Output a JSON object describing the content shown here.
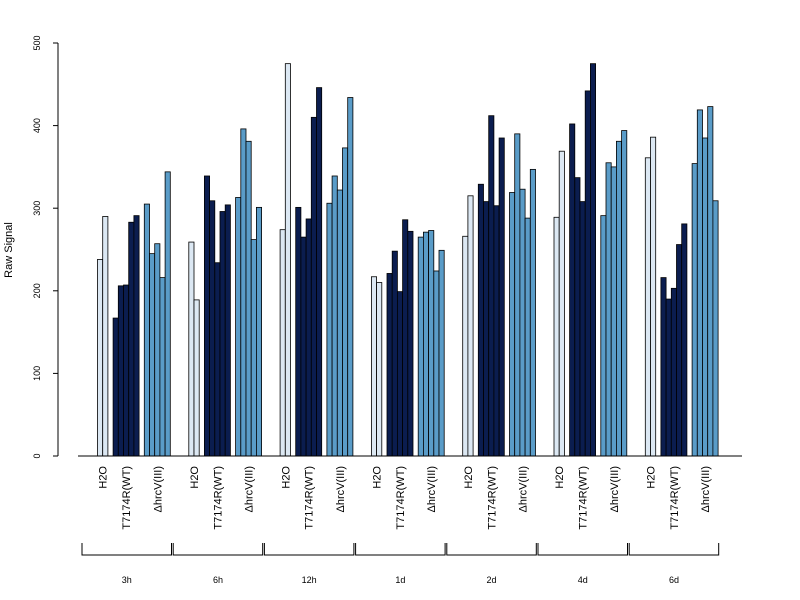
{
  "chart_data": {
    "type": "bar",
    "ylabel": "Raw Signal",
    "xlabel": "",
    "ylim": [
      0,
      500
    ],
    "yticks": [
      0,
      100,
      200,
      300,
      400,
      500
    ],
    "grid": false,
    "legend": "none",
    "colors": {
      "H2O": "#dce8f3",
      "T7174R(WT)": "#0b1d4f",
      "ΔhrcV(III)": "#5a9cc8"
    },
    "treatments": [
      "H2O",
      "T7174R(WT)",
      "ΔhrcV(III)"
    ],
    "time_points": [
      {
        "label": "3h",
        "values": {
          "H2O": [
            238,
            290
          ],
          "T7174R(WT)": [
            167,
            206,
            207,
            283,
            291
          ],
          "ΔhrcV(III)": [
            305,
            245,
            257,
            216,
            344
          ]
        }
      },
      {
        "label": "6h",
        "values": {
          "H2O": [
            259,
            189
          ],
          "T7174R(WT)": [
            339,
            309,
            234,
            296,
            304
          ],
          "ΔhrcV(III)": [
            313,
            396,
            381,
            262,
            301
          ]
        }
      },
      {
        "label": "12h",
        "values": {
          "H2O": [
            274,
            475
          ],
          "T7174R(WT)": [
            301,
            265,
            287,
            410,
            446
          ],
          "ΔhrcV(III)": [
            306,
            339,
            322,
            373,
            434
          ]
        }
      },
      {
        "label": "1d",
        "values": {
          "H2O": [
            217,
            210
          ],
          "T7174R(WT)": [
            221,
            248,
            199,
            286,
            272
          ],
          "ΔhrcV(III)": [
            265,
            271,
            273,
            224,
            249
          ]
        }
      },
      {
        "label": "2d",
        "values": {
          "H2O": [
            266,
            315
          ],
          "T7174R(WT)": [
            329,
            308,
            412,
            303,
            385
          ],
          "ΔhrcV(III)": [
            319,
            390,
            323,
            288,
            347
          ]
        }
      },
      {
        "label": "4d",
        "values": {
          "H2O": [
            289,
            369
          ],
          "T7174R(WT)": [
            402,
            337,
            308,
            442,
            475
          ],
          "ΔhrcV(III)": [
            291,
            355,
            350,
            381,
            394
          ]
        }
      },
      {
        "label": "6d",
        "values": {
          "H2O": [
            361,
            386
          ],
          "T7174R(WT)": [
            216,
            190,
            203,
            256,
            281
          ],
          "ΔhrcV(III)": [
            354,
            419,
            385,
            423,
            309
          ]
        }
      }
    ]
  }
}
